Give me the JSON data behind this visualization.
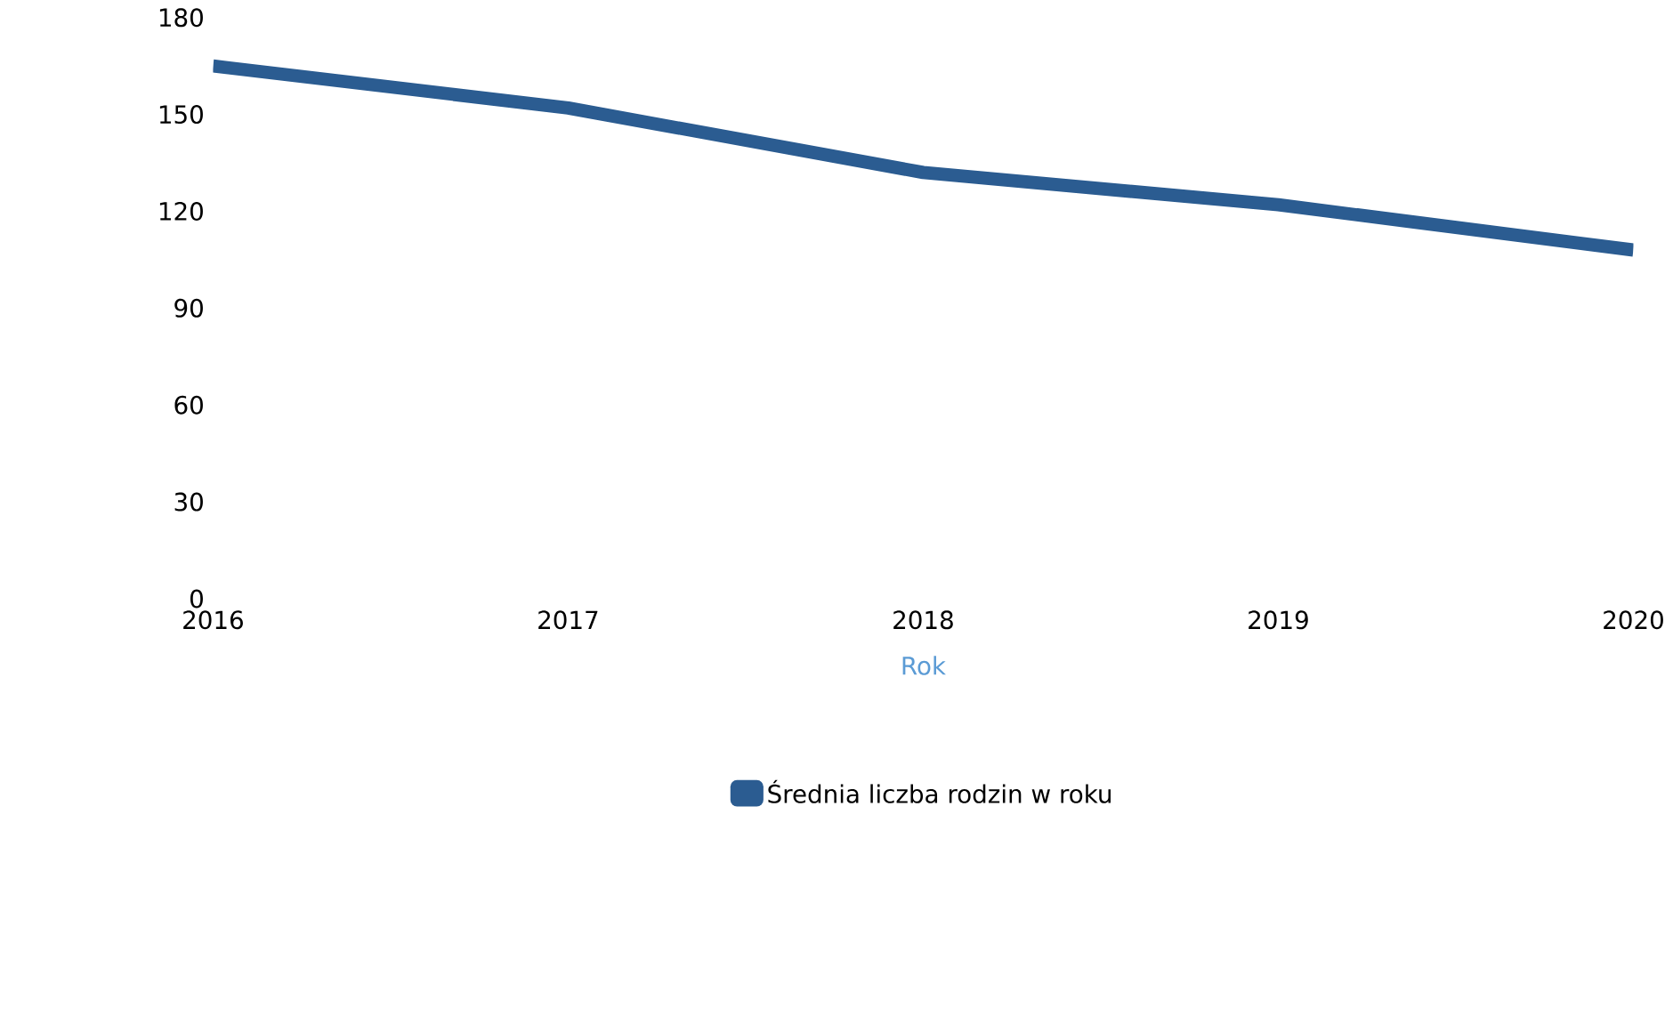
{
  "chart_data": {
    "type": "line",
    "xlabel": "Rok",
    "categories": [
      "2016",
      "2017",
      "2018",
      "2019",
      "2020"
    ],
    "series": [
      {
        "name": "Średnia liczba rodzin w roku",
        "color": "#2b5c91",
        "values": [
          165,
          152,
          132,
          122,
          108
        ]
      }
    ],
    "ylim": [
      0,
      180
    ],
    "yticks": [
      0,
      30,
      60,
      90,
      120,
      150,
      180
    ],
    "legend": "bottom",
    "grid": false,
    "marker": "none",
    "line_style": "solid"
  }
}
